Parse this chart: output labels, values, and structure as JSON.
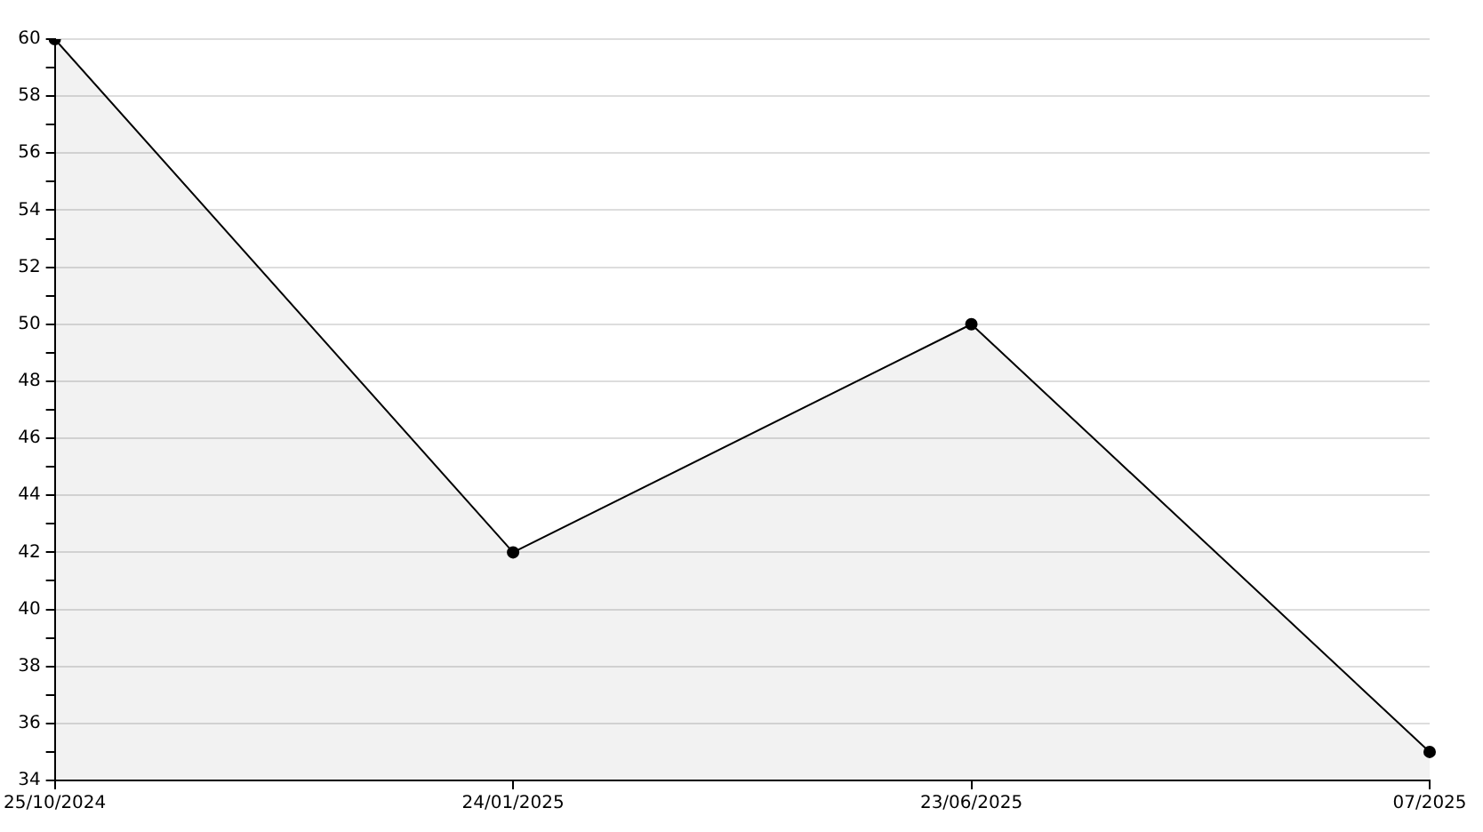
{
  "chart_data": {
    "type": "area",
    "categories": [
      "25/10/2024",
      "24/01/2025",
      "23/06/2025",
      "07/2025"
    ],
    "series": [
      {
        "color": "#000000",
        "values": [
          60,
          42,
          50,
          35
        ]
      }
    ],
    "ylim": [
      34,
      60
    ],
    "yticks": [
      34,
      {
        "value": 35,
        "label": null
      },
      36,
      {
        "value": 37,
        "label": null
      },
      38,
      {
        "value": 39,
        "label": null
      },
      40,
      {
        "value": 41,
        "label": null
      },
      42,
      {
        "value": 43,
        "label": null
      },
      44,
      {
        "value": 45,
        "label": null
      },
      46,
      {
        "value": 47,
        "label": null
      },
      48,
      {
        "value": 49,
        "label": null
      },
      50,
      {
        "value": 51,
        "label": null
      },
      52,
      {
        "value": 53,
        "label": null
      },
      54,
      {
        "value": 55,
        "label": null
      },
      56,
      {
        "value": 57,
        "label": null
      },
      58,
      {
        "value": 59,
        "label": null
      },
      60
    ],
    "grid": "y",
    "marker": "circle",
    "line_style": "solid"
  }
}
